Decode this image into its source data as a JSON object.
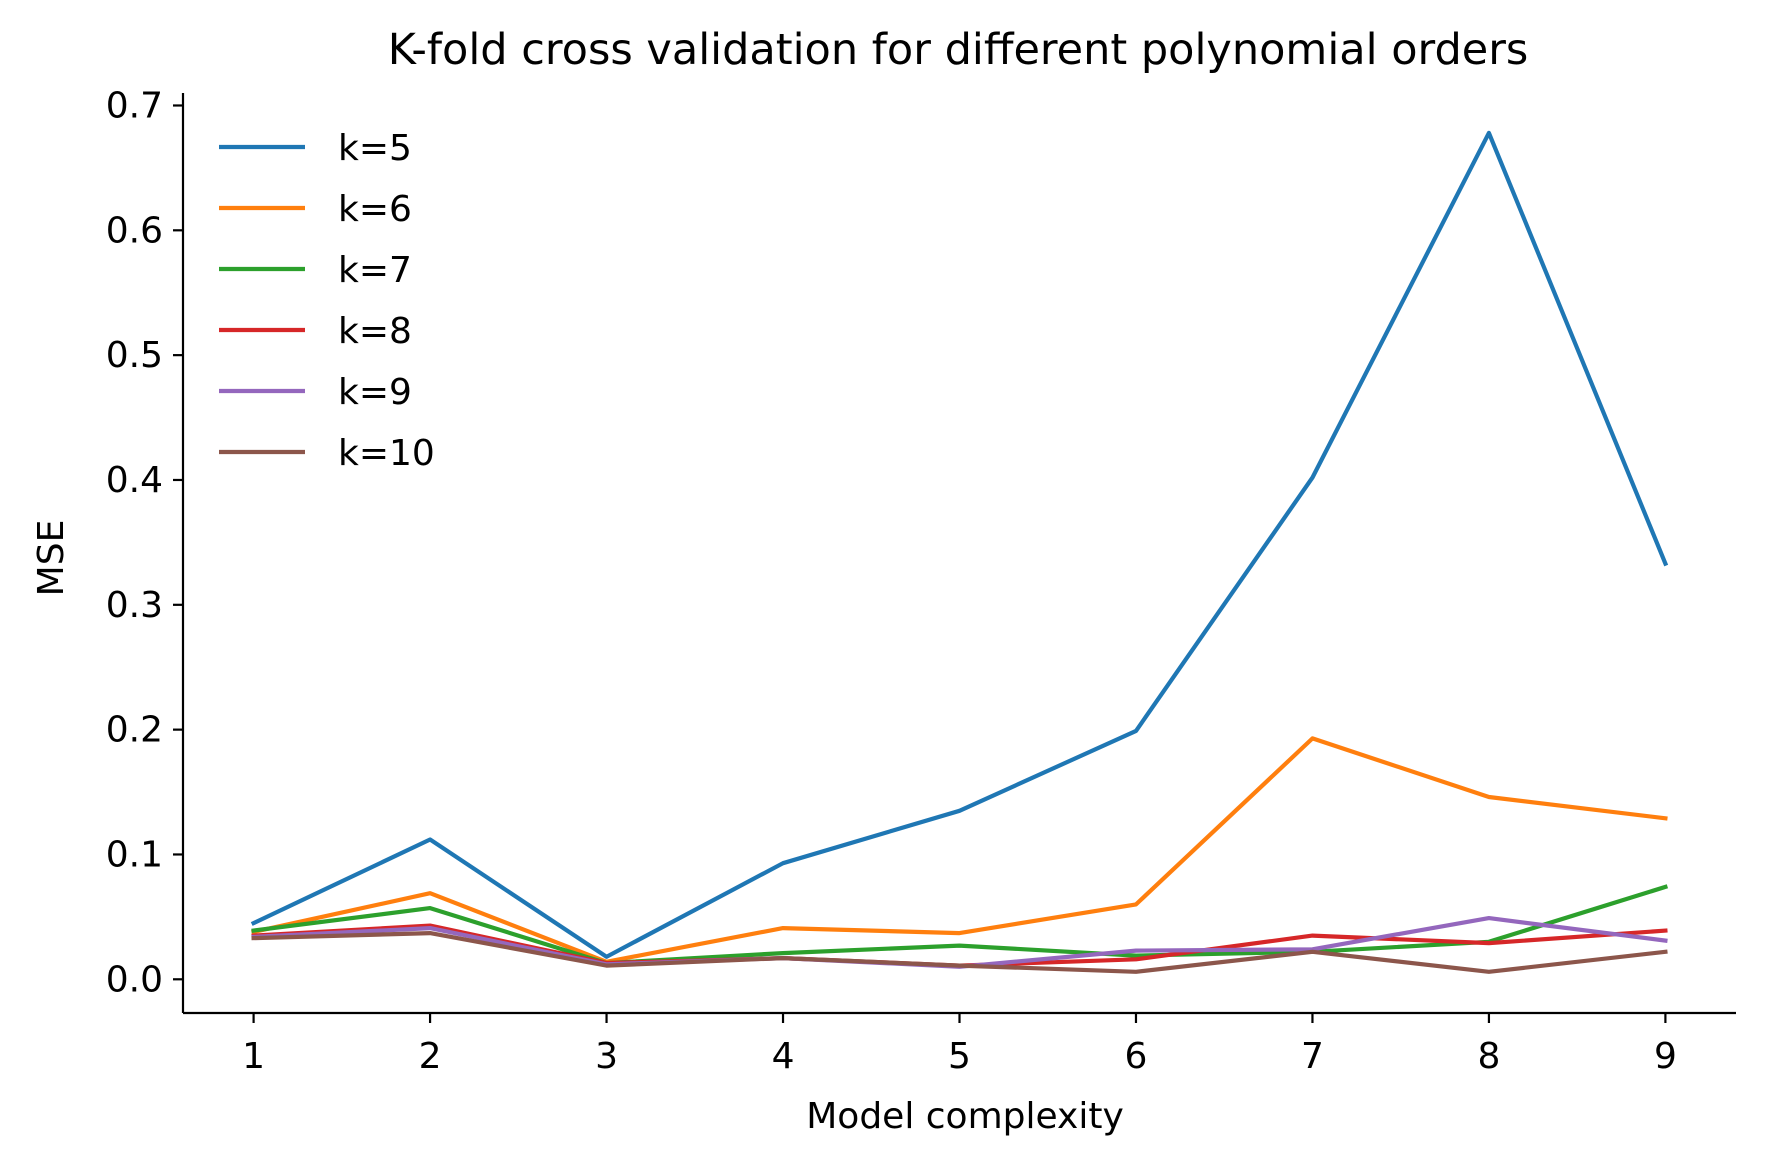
{
  "chart_data": {
    "type": "line",
    "title": "K-fold cross validation for different polynomial orders",
    "xlabel": "Model complexity",
    "ylabel": "MSE",
    "x": [
      1,
      2,
      3,
      4,
      5,
      6,
      7,
      8,
      9
    ],
    "xticks": [
      "1",
      "2",
      "3",
      "4",
      "5",
      "6",
      "7",
      "8",
      "9"
    ],
    "yticks": [
      "0.0",
      "0.1",
      "0.2",
      "0.3",
      "0.4",
      "0.5",
      "0.6",
      "0.7"
    ],
    "xlim": [
      0.6,
      9.4
    ],
    "ylim": [
      -0.027,
      0.71
    ],
    "grid": false,
    "legend_position": "top-left",
    "series": [
      {
        "name": "k=5",
        "color": "#1f77b4",
        "values": [
          0.045,
          0.112,
          0.018,
          0.093,
          0.135,
          0.199,
          0.402,
          0.678,
          0.333
        ]
      },
      {
        "name": "k=6",
        "color": "#ff7f0e",
        "values": [
          0.038,
          0.069,
          0.014,
          0.041,
          0.037,
          0.06,
          0.193,
          0.146,
          0.129
        ]
      },
      {
        "name": "k=7",
        "color": "#2ca02c",
        "values": [
          0.039,
          0.057,
          0.013,
          0.021,
          0.027,
          0.019,
          0.022,
          0.03,
          0.074
        ]
      },
      {
        "name": "k=8",
        "color": "#d62728",
        "values": [
          0.035,
          0.043,
          0.013,
          0.017,
          0.011,
          0.016,
          0.035,
          0.029,
          0.039
        ]
      },
      {
        "name": "k=9",
        "color": "#9467bd",
        "values": [
          0.034,
          0.041,
          0.012,
          0.017,
          0.01,
          0.023,
          0.024,
          0.049,
          0.031
        ]
      },
      {
        "name": "k=10",
        "color": "#8c564b",
        "values": [
          0.033,
          0.037,
          0.011,
          0.017,
          0.011,
          0.006,
          0.022,
          0.006,
          0.022
        ]
      }
    ]
  }
}
